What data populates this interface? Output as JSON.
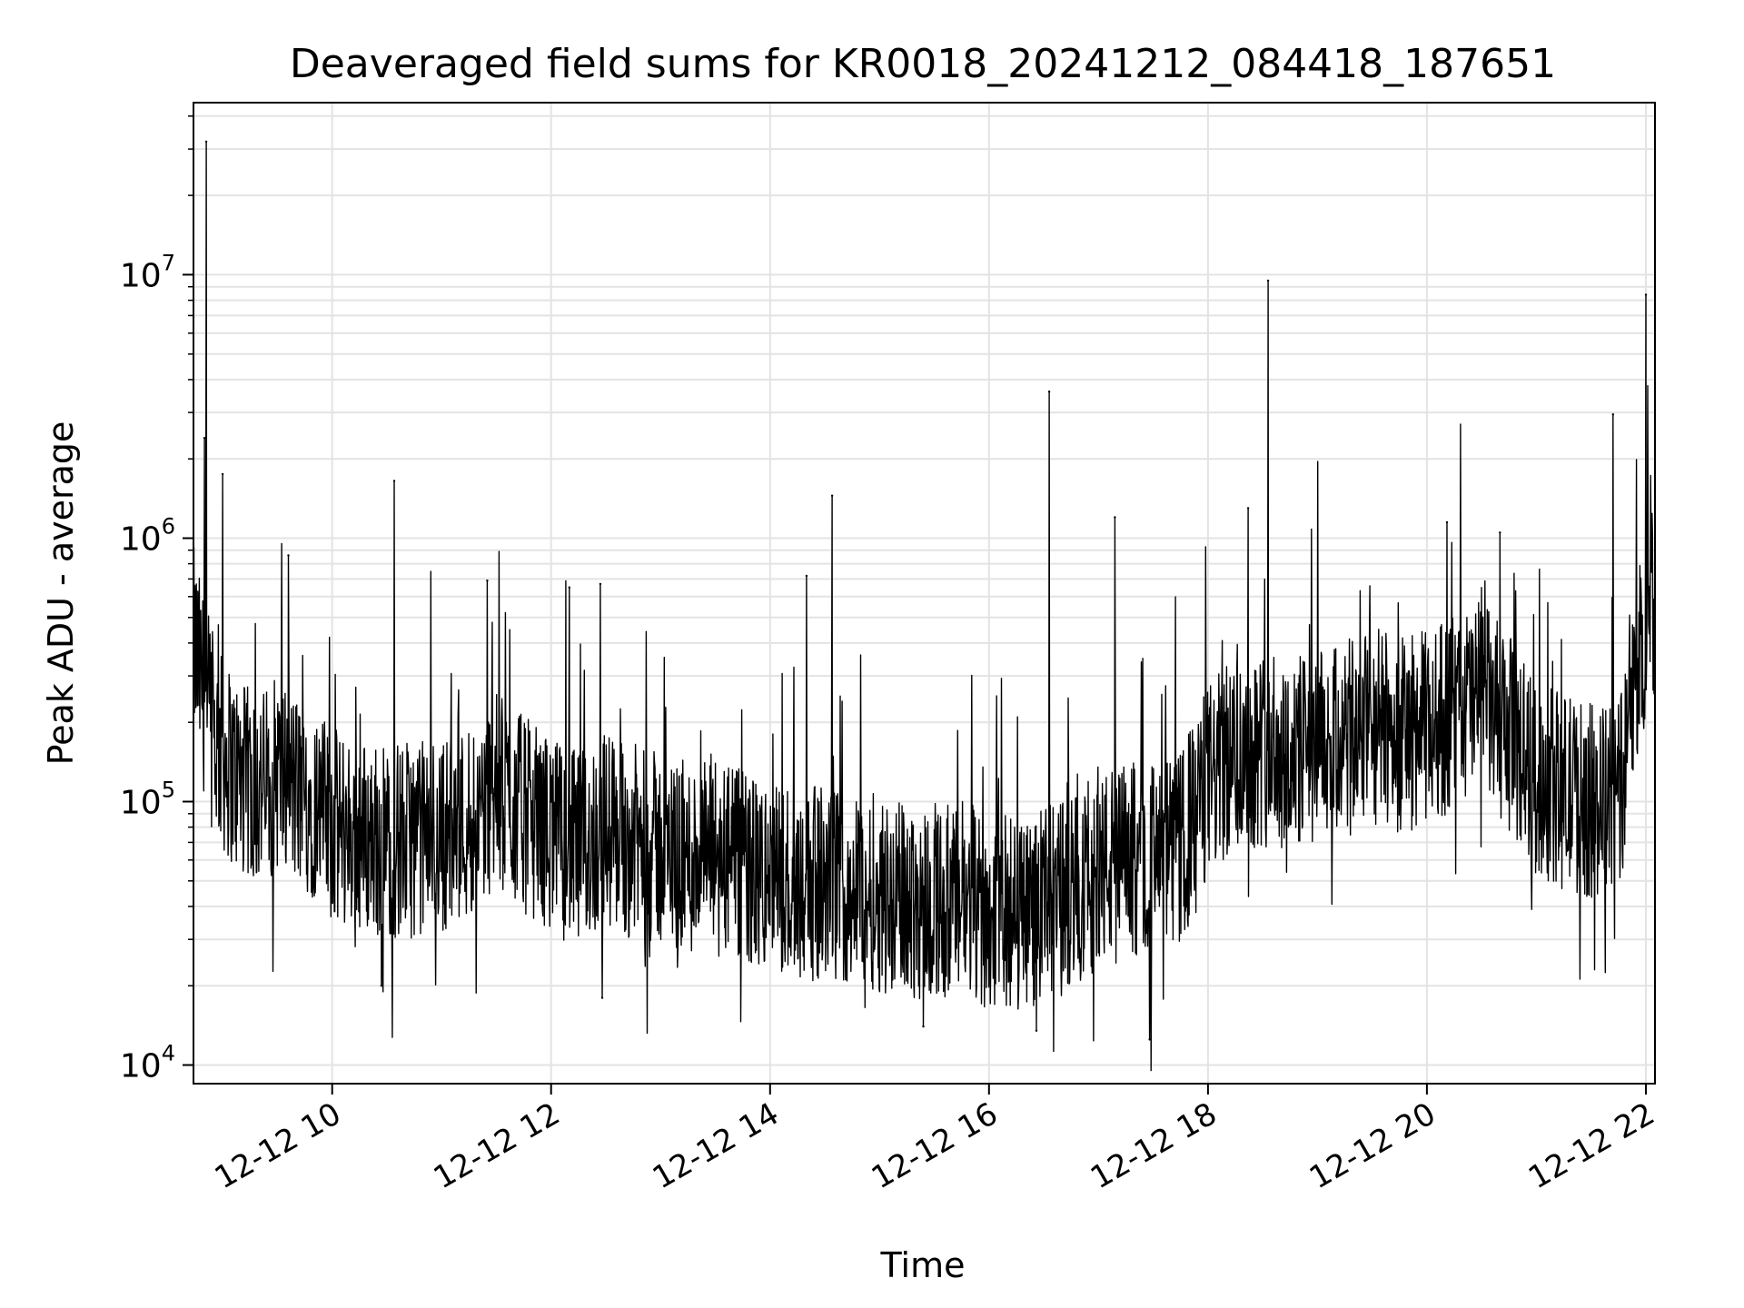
{
  "chart_data": {
    "type": "line",
    "title": "Deaveraged field sums for KR0018_20241212_084418_187651",
    "xlabel": "Time",
    "ylabel": "Peak ADU - average",
    "yscale": "log",
    "grid": true,
    "legend": "none",
    "xlim": [
      "2024-12-12T08:44",
      "2024-12-12T22:05"
    ],
    "ylim": [
      8500,
      45000000
    ],
    "x_ticks": [
      {
        "value": "2024-12-12T10:00",
        "label": "12-12 10"
      },
      {
        "value": "2024-12-12T12:00",
        "label": "12-12 12"
      },
      {
        "value": "2024-12-12T14:00",
        "label": "12-12 14"
      },
      {
        "value": "2024-12-12T16:00",
        "label": "12-12 16"
      },
      {
        "value": "2024-12-12T18:00",
        "label": "12-12 18"
      },
      {
        "value": "2024-12-12T20:00",
        "label": "12-12 20"
      },
      {
        "value": "2024-12-12T22:00",
        "label": "12-12 22"
      }
    ],
    "y_ticks": [
      {
        "value": 10000,
        "base": "10",
        "exp": "4"
      },
      {
        "value": 100000,
        "base": "10",
        "exp": "5"
      },
      {
        "value": 1000000,
        "base": "10",
        "exp": "6"
      },
      {
        "value": 10000000,
        "base": "10",
        "exp": "7"
      }
    ],
    "series": [
      {
        "color": "#000000",
        "x": [
          "2024-12-12T08:44",
          "2024-12-12T08:50",
          "2024-12-12T08:55",
          "2024-12-12T09:00",
          "2024-12-12T09:10",
          "2024-12-12T09:20",
          "2024-12-12T09:30",
          "2024-12-12T09:40",
          "2024-12-12T09:50",
          "2024-12-12T10:00",
          "2024-12-12T10:15",
          "2024-12-12T10:30",
          "2024-12-12T10:45",
          "2024-12-12T11:00",
          "2024-12-12T11:15",
          "2024-12-12T11:30",
          "2024-12-12T11:45",
          "2024-12-12T12:00",
          "2024-12-12T12:15",
          "2024-12-12T12:30",
          "2024-12-12T12:45",
          "2024-12-12T13:00",
          "2024-12-12T13:15",
          "2024-12-12T13:30",
          "2024-12-12T13:45",
          "2024-12-12T14:00",
          "2024-12-12T14:15",
          "2024-12-12T14:30",
          "2024-12-12T14:45",
          "2024-12-12T15:00",
          "2024-12-12T15:15",
          "2024-12-12T15:30",
          "2024-12-12T15:45",
          "2024-12-12T16:00",
          "2024-12-12T16:15",
          "2024-12-12T16:30",
          "2024-12-12T16:45",
          "2024-12-12T17:00",
          "2024-12-12T17:15",
          "2024-12-12T17:30",
          "2024-12-12T17:45",
          "2024-12-12T18:00",
          "2024-12-12T18:15",
          "2024-12-12T18:30",
          "2024-12-12T18:45",
          "2024-12-12T19:00",
          "2024-12-12T19:15",
          "2024-12-12T19:30",
          "2024-12-12T19:45",
          "2024-12-12T20:00",
          "2024-12-12T20:15",
          "2024-12-12T20:30",
          "2024-12-12T20:45",
          "2024-12-12T21:00",
          "2024-12-12T21:15",
          "2024-12-12T21:30",
          "2024-12-12T21:45",
          "2024-12-12T22:00",
          "2024-12-12T22:05"
        ],
        "y": [
          400000,
          250000,
          180000,
          150000,
          120000,
          110000,
          130000,
          110000,
          100000,
          80000,
          75000,
          70000,
          72000,
          75000,
          85000,
          110000,
          90000,
          75000,
          65000,
          80000,
          70000,
          65000,
          60000,
          65000,
          55000,
          50000,
          50000,
          48000,
          47000,
          45000,
          42000,
          42000,
          40000,
          38000,
          38000,
          40000,
          45000,
          55000,
          60000,
          60000,
          65000,
          120000,
          150000,
          160000,
          150000,
          160000,
          170000,
          200000,
          180000,
          190000,
          220000,
          250000,
          180000,
          120000,
          110000,
          100000,
          100000,
          500000,
          600000
        ],
        "spikes": [
          {
            "x": "2024-12-12T08:51",
            "y": 32000000
          },
          {
            "x": "2024-12-12T08:50",
            "y": 2400000
          },
          {
            "x": "2024-12-12T09:00",
            "y": 1750000
          },
          {
            "x": "2024-12-12T09:36",
            "y": 860000
          },
          {
            "x": "2024-12-12T10:34",
            "y": 1650000
          },
          {
            "x": "2024-12-12T11:25",
            "y": 690000
          },
          {
            "x": "2024-12-12T12:10",
            "y": 650000
          },
          {
            "x": "2024-12-12T12:27",
            "y": 670000
          },
          {
            "x": "2024-12-12T14:20",
            "y": 720000
          },
          {
            "x": "2024-12-12T14:34",
            "y": 1450000
          },
          {
            "x": "2024-12-12T16:33",
            "y": 3600000
          },
          {
            "x": "2024-12-12T17:09",
            "y": 1200000
          },
          {
            "x": "2024-12-12T18:22",
            "y": 1300000
          },
          {
            "x": "2024-12-12T18:33",
            "y": 9500000
          },
          {
            "x": "2024-12-12T20:11",
            "y": 1150000
          },
          {
            "x": "2024-12-12T20:40",
            "y": 1050000
          },
          {
            "x": "2024-12-12T21:42",
            "y": 2950000
          },
          {
            "x": "2024-12-12T22:00",
            "y": 8400000
          }
        ],
        "dips": [
          {
            "x": "2024-12-12T15:24",
            "y": 14000
          },
          {
            "x": "2024-12-12T16:26",
            "y": 13500
          },
          {
            "x": "2024-12-12T17:28",
            "y": 12500
          },
          {
            "x": "2024-12-12T12:28",
            "y": 18000
          },
          {
            "x": "2024-12-12T10:27",
            "y": 20000
          }
        ]
      }
    ]
  }
}
